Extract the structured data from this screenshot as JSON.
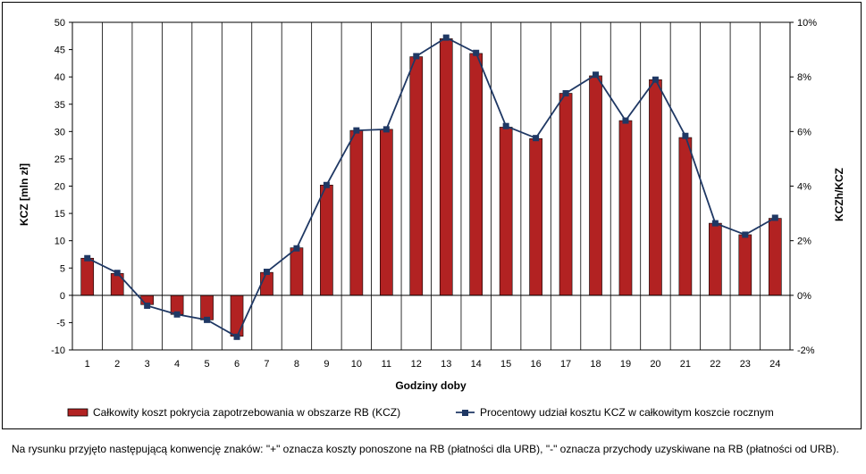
{
  "chart_data": {
    "type": "bar+line",
    "title": "",
    "xlabel": "Godziny doby",
    "ylabel_left": "KCZ [mln zł]",
    "ylabel_right": "KCZh/KCZ",
    "categories": [
      "1",
      "2",
      "3",
      "4",
      "5",
      "6",
      "7",
      "8",
      "9",
      "10",
      "11",
      "12",
      "13",
      "14",
      "15",
      "16",
      "17",
      "18",
      "19",
      "20",
      "21",
      "22",
      "23",
      "24"
    ],
    "ylim_left": [
      -10,
      50
    ],
    "yticks_left": [
      "-10",
      "-5",
      "0",
      "5",
      "10",
      "15",
      "20",
      "25",
      "30",
      "35",
      "40",
      "45",
      "50"
    ],
    "ylim_right": [
      -2,
      10
    ],
    "yticks_right": [
      "-2%",
      "0%",
      "2%",
      "4%",
      "6%",
      "8%",
      "10%"
    ],
    "grid": "vertical category lines",
    "legend_position": "bottom",
    "series": [
      {
        "name": "Całkowity koszt pokrycia zapotrzebowania w obszarze RB (KCZ)",
        "type": "bar",
        "axis": "left",
        "color": "#b22222",
        "values": [
          6.8,
          4.0,
          -1.7,
          -3.5,
          -4.5,
          -7.5,
          4.2,
          8.7,
          20.2,
          30.2,
          30.4,
          43.7,
          47.0,
          44.3,
          30.8,
          28.7,
          37.0,
          40.2,
          32.0,
          39.5,
          28.9,
          13.2,
          11.1,
          14.1
        ]
      },
      {
        "name": "Procentowy udział kosztu KCZ w całkowitym koszcie rocznym",
        "type": "line",
        "axis": "right",
        "color": "#1f3864",
        "values": [
          1.36,
          0.82,
          -0.38,
          -0.7,
          -0.9,
          -1.52,
          0.86,
          1.72,
          4.04,
          6.04,
          6.08,
          8.76,
          9.44,
          8.88,
          6.2,
          5.76,
          7.4,
          8.08,
          6.4,
          7.9,
          5.84,
          2.64,
          2.22,
          2.84
        ]
      }
    ]
  },
  "footnote": "Na rysunku przyjęto następującą konwencję znaków: \"+\" oznacza koszty ponoszone na RB (płatności dla URB), \"-\" oznacza przychody uzyskiwane na RB (płatności od URB)."
}
